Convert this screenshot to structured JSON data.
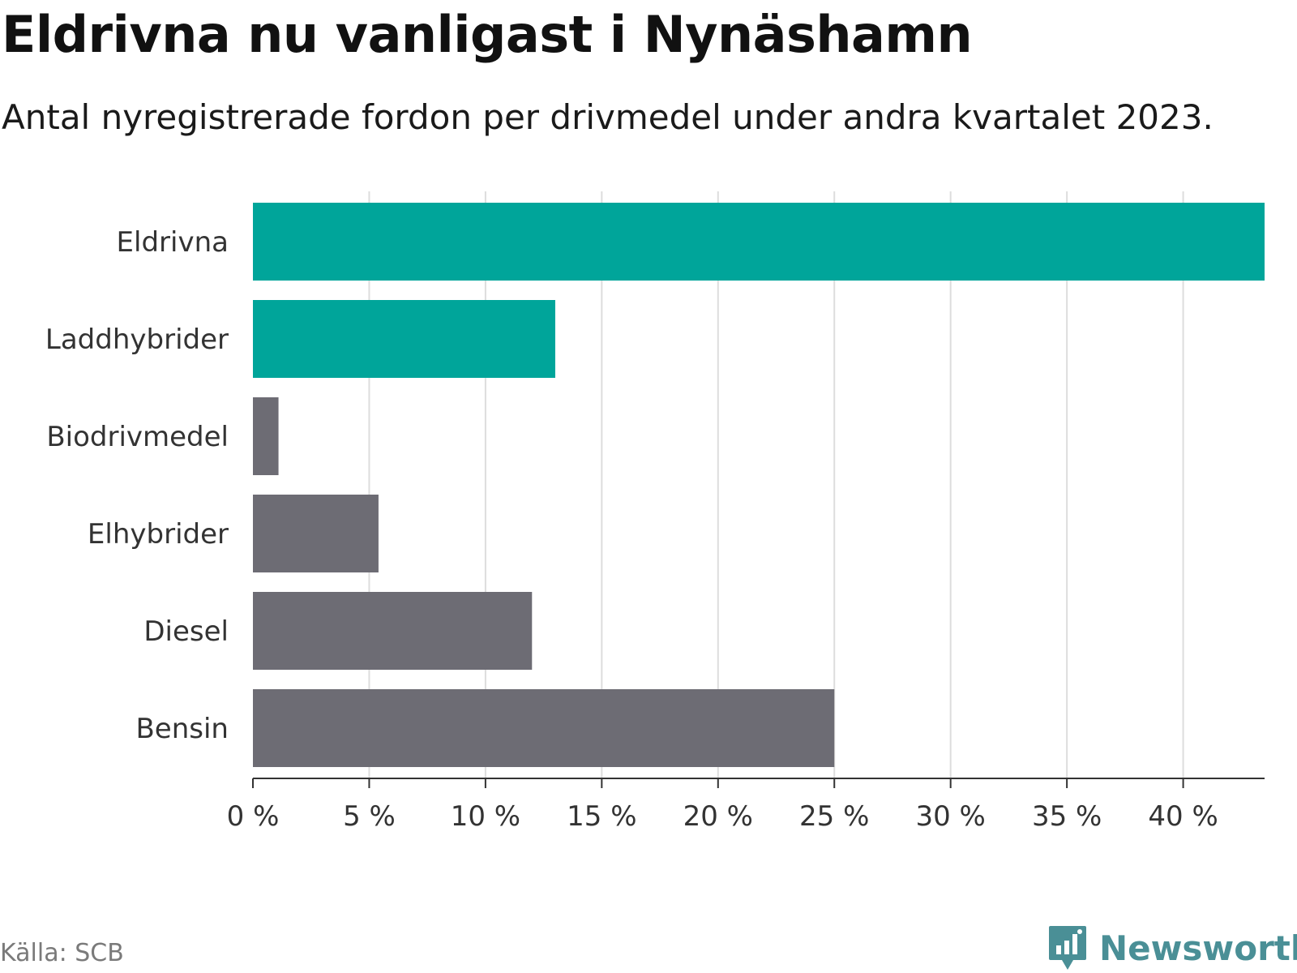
{
  "header": {
    "title": "Eldrivna nu vanligast i Nynäshamn",
    "subtitle": "Antal nyregistrerade fordon per drivmedel under andra kvartalet 2023."
  },
  "footer": {
    "source": "Källa: SCB",
    "brand": "Newsworthy",
    "brand_icon": "newsworthy-logo-icon",
    "brand_color": "#4a8f96"
  },
  "colors": {
    "highlight": "#00a59a",
    "other": "#6d6c74",
    "grid": "#dddddd",
    "axis": "#333333"
  },
  "chart_data": {
    "type": "bar",
    "orientation": "horizontal",
    "title": "Eldrivna nu vanligast i Nynäshamn",
    "subtitle": "Antal nyregistrerade fordon per drivmedel under andra kvartalet 2023.",
    "categories": [
      "Eldrivna",
      "Laddhybrider",
      "Biodrivmedel",
      "Elhybrider",
      "Diesel",
      "Bensin"
    ],
    "values": [
      43.5,
      13.0,
      1.1,
      5.4,
      12.0,
      25.0
    ],
    "highlighted": [
      true,
      true,
      false,
      false,
      false,
      false
    ],
    "unit": "%",
    "xlim": [
      0,
      43.5
    ],
    "xticks": [
      0,
      5,
      10,
      15,
      20,
      25,
      30,
      35,
      40
    ],
    "xtick_labels": [
      "0 %",
      "5 %",
      "10 %",
      "15 %",
      "20 %",
      "25 %",
      "30 %",
      "35 %",
      "40 %"
    ],
    "grid": true,
    "xlabel": "",
    "ylabel": ""
  }
}
